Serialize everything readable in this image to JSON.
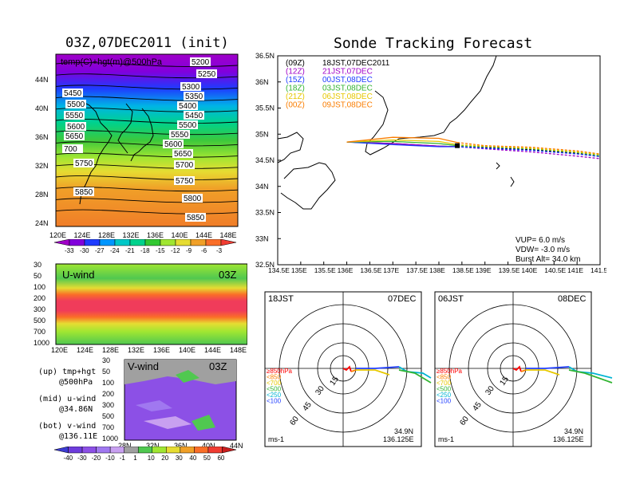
{
  "left_top": {
    "title": "03Z,07DEC2011 (init)",
    "label": "temp(C)+hgt(m)@500hPa",
    "lat_ticks": [
      "44N",
      "40N",
      "36N",
      "32N",
      "28N",
      "24N"
    ],
    "lon_ticks": [
      "120E",
      "124E",
      "128E",
      "132E",
      "136E",
      "140E",
      "144E",
      "148E"
    ],
    "contours": [
      "5250",
      "5300",
      "5350",
      "5400",
      "5450",
      "5500",
      "5550",
      "5600",
      "5650",
      "5700",
      "5750",
      "5800",
      "5850",
      "5900"
    ],
    "contour_labels": [
      {
        "t": "5200"
      },
      {
        "t": "5250"
      },
      {
        "t": "5300"
      },
      {
        "t": "5350"
      },
      {
        "t": "5400"
      },
      {
        "t": "5450"
      },
      {
        "t": "5500"
      },
      {
        "t": "5550"
      },
      {
        "t": "5600"
      },
      {
        "t": "5650"
      },
      {
        "t": "5700"
      },
      {
        "t": "5750"
      },
      {
        "t": "5800"
      },
      {
        "t": "5850"
      },
      {
        "t": "5900"
      },
      {
        "t": "5450"
      },
      {
        "t": "5500"
      },
      {
        "t": "5550"
      },
      {
        "t": "5600"
      },
      {
        "t": "5650"
      },
      {
        "t": "700"
      },
      {
        "t": "5750"
      },
      {
        "t": "5850"
      }
    ],
    "colorbar": [
      "-33",
      "-30",
      "-27",
      "-24",
      "-21",
      "-18",
      "-15",
      "-12",
      "-9",
      "-6",
      "-3"
    ],
    "colorbar_colors": [
      "#a000c8",
      "#8200dc",
      "#1e3cff",
      "#0096ff",
      "#00c8c8",
      "#00d28c",
      "#32c832",
      "#a0e632",
      "#e6dc32",
      "#f0a028",
      "#fa6e28",
      "#f03c32"
    ]
  },
  "left_mid": {
    "label": "U-wind",
    "time": "03Z",
    "p_ticks": [
      "30",
      "50",
      "100",
      "200",
      "300",
      "500",
      "700",
      "1000"
    ],
    "lon_ticks": [
      "120E",
      "124E",
      "128E",
      "132E",
      "136E",
      "140E",
      "144E",
      "148E"
    ]
  },
  "left_bot": {
    "label": "V-wind",
    "time": "03Z",
    "p_ticks": [
      "30",
      "50",
      "100",
      "200",
      "300",
      "500",
      "700",
      "1000"
    ],
    "lat_ticks": [
      "28N",
      "32N",
      "36N",
      "40N",
      "44N"
    ],
    "colorbar": [
      "-40",
      "-30",
      "-20",
      "-10",
      "-1",
      "1",
      "10",
      "20",
      "30",
      "40",
      "50",
      "60"
    ],
    "colorbar_colors": [
      "#3c3cd2",
      "#6e3cdc",
      "#8c50e6",
      "#a078f0",
      "#c8a0f0",
      "#a0a0a0",
      "#50c850",
      "#a0e632",
      "#e6dc32",
      "#f0a028",
      "#fa6e28",
      "#f03c32",
      "#c81e1e"
    ]
  },
  "legend": [
    {
      "a": "(up) tmp+hgt",
      "b": "@500hPa"
    },
    {
      "a": "(mid) u-wind",
      "b": "@34.86N"
    },
    {
      "a": "(bot) v-wind",
      "b": "@136.11E"
    }
  ],
  "right_top": {
    "title": "Sonde Tracking Forecast",
    "lat_ticks": [
      "36.5N",
      "36N",
      "35.5N",
      "35N",
      "34.5N",
      "34N",
      "33.5N",
      "33N",
      "32.5N"
    ],
    "lon_ticks": [
      "134.5E",
      "135E",
      "135.5E",
      "136E",
      "136.5E",
      "137E",
      "137.5E",
      "138E",
      "138.5E",
      "139E",
      "139.5E",
      "140E",
      "140.5E",
      "141E",
      "141.5E"
    ],
    "runs": [
      {
        "code": "(09Z)",
        "text": "18JST,07DEC2011",
        "color": "#000000"
      },
      {
        "code": "(12Z)",
        "text": "21JST,07DEC",
        "color": "#a000c8"
      },
      {
        "code": "(15Z)",
        "text": "00JST,08DEC",
        "color": "#1e3cff"
      },
      {
        "code": "(18Z)",
        "text": "03JST,08DEC",
        "color": "#32b432"
      },
      {
        "code": "(21Z)",
        "text": "06JST,08DEC",
        "color": "#e6c800"
      },
      {
        "code": "(00Z)",
        "text": "09JST,08DEC",
        "color": "#fa7d00"
      }
    ],
    "info": [
      "VUP= 6.0 m/s",
      "VDW= -3.0 m/s",
      "Burst Alt= 34.0 km"
    ]
  },
  "hodo1": {
    "time": "18JST",
    "date": "07DEC",
    "unit": "ms-1",
    "lat": "34.9N",
    "lon": "136.125E",
    "rings": [
      "15",
      "30",
      "45",
      "60"
    ],
    "levels": [
      {
        "t": "≥850hPa",
        "c": "#ff0000"
      },
      {
        "t": "<850",
        "c": "#fa7d00"
      },
      {
        "t": "<700",
        "c": "#e6c800"
      },
      {
        "t": "<500",
        "c": "#32b432"
      },
      {
        "t": "<250",
        "c": "#00b4d2"
      },
      {
        "t": "<100",
        "c": "#1e3cff"
      }
    ]
  },
  "hodo2": {
    "time": "06JST",
    "date": "08DEC",
    "unit": "ms-1",
    "lat": "34.9N",
    "lon": "136.125E",
    "rings": [
      "15",
      "30",
      "45",
      "60"
    ],
    "levels": [
      {
        "t": "≥850hPa",
        "c": "#ff0000"
      },
      {
        "t": "<850",
        "c": "#fa7d00"
      },
      {
        "t": "<700",
        "c": "#e6c800"
      },
      {
        "t": "<500",
        "c": "#32b432"
      },
      {
        "t": "<250",
        "c": "#00b4d2"
      },
      {
        "t": "<100",
        "c": "#1e3cff"
      }
    ]
  },
  "chart_data": [
    {
      "type": "heatmap",
      "title": "03Z,07DEC2011 (init)",
      "label": "temp(C)+hgt(m)@500hPa",
      "x": [
        "120E",
        "124E",
        "128E",
        "132E",
        "136E",
        "140E",
        "144E",
        "148E"
      ],
      "y": [
        "24N",
        "28N",
        "32N",
        "36N",
        "40N",
        "44N"
      ],
      "contours": [
        5250,
        5300,
        5350,
        5400,
        5450,
        5500,
        5550,
        5600,
        5650,
        5700,
        5750,
        5800,
        5850,
        5900
      ]
    },
    {
      "type": "heatmap",
      "label": "U-wind",
      "ylim": [
        1000,
        30
      ]
    },
    {
      "type": "heatmap",
      "label": "V-wind",
      "xlim": [
        "28N",
        "44N"
      ],
      "ylim": [
        1000,
        30
      ]
    },
    {
      "type": "line",
      "title": "Sonde Tracking Forecast",
      "xlim": [
        134.5,
        141.5
      ],
      "ylim": [
        32.5,
        36.5
      ],
      "series": [
        {
          "name": "(09Z) 18JST,07DEC2011",
          "values": [
            [
              136.0,
              34.85
            ],
            [
              137.0,
              34.82
            ],
            [
              138.0,
              34.77
            ],
            [
              138.4,
              34.76
            ],
            [
              139.0,
              34.74
            ],
            [
              140.0,
              34.7
            ],
            [
              141.0,
              34.63
            ],
            [
              141.5,
              34.57
            ]
          ]
        },
        {
          "name": "(12Z) 21JST,07DEC",
          "values": [
            [
              136.0,
              34.85
            ],
            [
              137.0,
              34.82
            ],
            [
              138.0,
              34.77
            ],
            [
              138.4,
              34.76
            ],
            [
              139.0,
              34.72
            ],
            [
              140.0,
              34.66
            ],
            [
              141.0,
              34.58
            ],
            [
              141.5,
              34.53
            ]
          ]
        },
        {
          "name": "(15Z) 00JST,08DEC",
          "values": [
            [
              136.0,
              34.85
            ],
            [
              137.0,
              34.8
            ],
            [
              138.0,
              34.76
            ],
            [
              138.4,
              34.76
            ],
            [
              139.0,
              34.73
            ],
            [
              140.0,
              34.69
            ],
            [
              141.0,
              34.62
            ],
            [
              141.5,
              34.57
            ]
          ]
        },
        {
          "name": "(18Z) 03JST,08DEC",
          "values": [
            [
              136.0,
              34.85
            ],
            [
              137.0,
              34.86
            ],
            [
              138.0,
              34.82
            ],
            [
              138.4,
              34.78
            ],
            [
              139.0,
              34.76
            ],
            [
              140.0,
              34.72
            ],
            [
              141.0,
              34.65
            ],
            [
              141.5,
              34.59
            ]
          ]
        },
        {
          "name": "(21Z) 06JST,08DEC",
          "values": [
            [
              136.0,
              34.85
            ],
            [
              137.0,
              34.89
            ],
            [
              138.0,
              34.86
            ],
            [
              138.4,
              34.8
            ],
            [
              139.0,
              34.77
            ],
            [
              140.0,
              34.73
            ],
            [
              141.0,
              34.66
            ],
            [
              141.5,
              34.61
            ]
          ]
        },
        {
          "name": "(00Z) 09JST,08DEC",
          "values": [
            [
              136.0,
              34.85
            ],
            [
              137.0,
              34.94
            ],
            [
              138.0,
              34.92
            ],
            [
              138.4,
              34.84
            ],
            [
              139.0,
              34.78
            ],
            [
              140.0,
              34.75
            ],
            [
              141.0,
              34.68
            ],
            [
              141.5,
              34.62
            ]
          ]
        }
      ]
    }
  ]
}
